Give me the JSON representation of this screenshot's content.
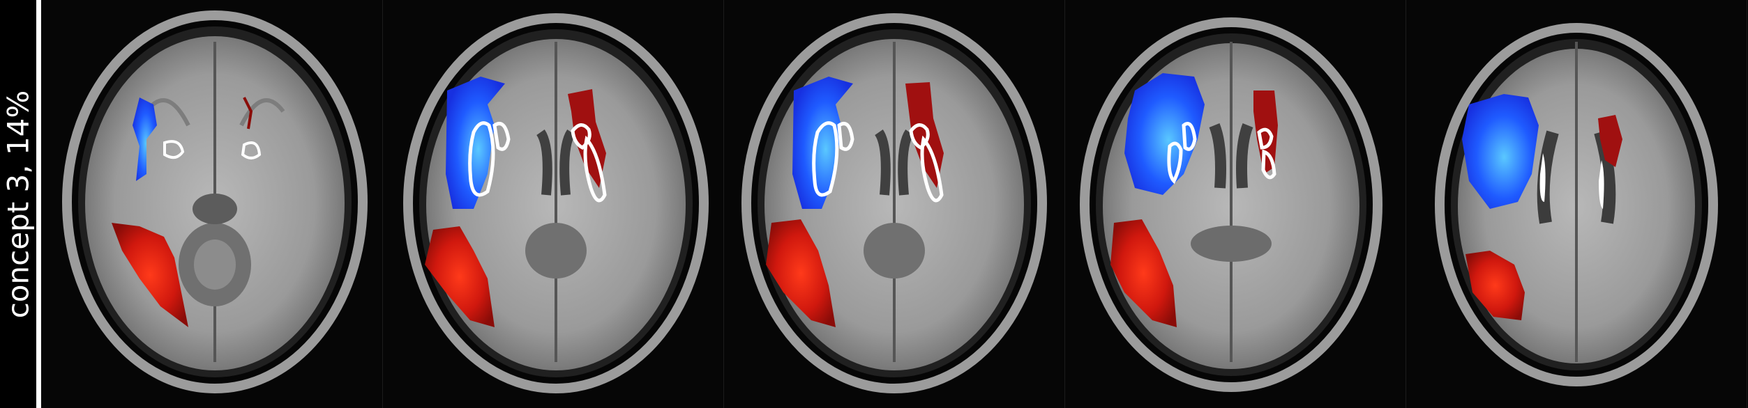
{
  "row_label": "concept 3, 14%",
  "colors": {
    "background": "#000000",
    "label_text": "#ffffff",
    "positive_map": "#cc1a10",
    "negative_map": "#1f4dff",
    "contour": "#ffffff"
  },
  "panels": [
    {
      "icon": "axial-brain-slice-1"
    },
    {
      "icon": "axial-brain-slice-2"
    },
    {
      "icon": "axial-brain-slice-3"
    },
    {
      "icon": "axial-brain-slice-4"
    },
    {
      "icon": "axial-brain-slice-5"
    }
  ]
}
